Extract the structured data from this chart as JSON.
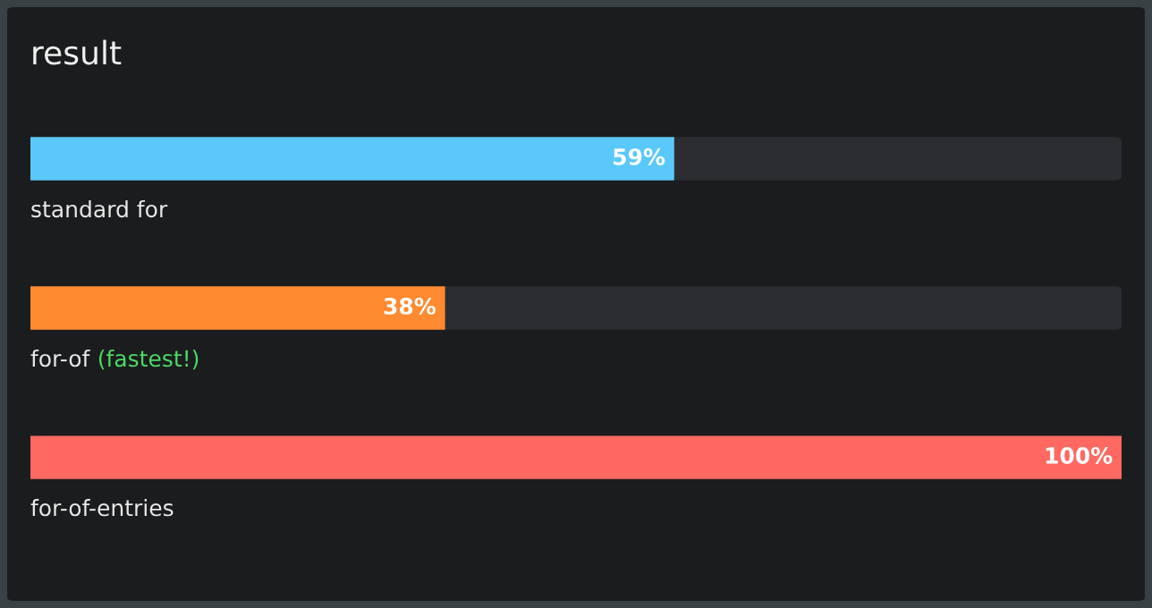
{
  "chart_data": {
    "type": "bar",
    "orientation": "horizontal",
    "title": "result",
    "categories": [
      "standard for",
      "for-of",
      "for-of-entries"
    ],
    "values": [
      59,
      38,
      100
    ],
    "colors": [
      "#5ac8fa",
      "#ff8a30",
      "#ff6961"
    ],
    "value_labels": [
      "59%",
      "38%",
      "100%"
    ],
    "annotations": [
      "(fastest!)"
    ],
    "xlim": [
      0,
      100
    ]
  }
}
